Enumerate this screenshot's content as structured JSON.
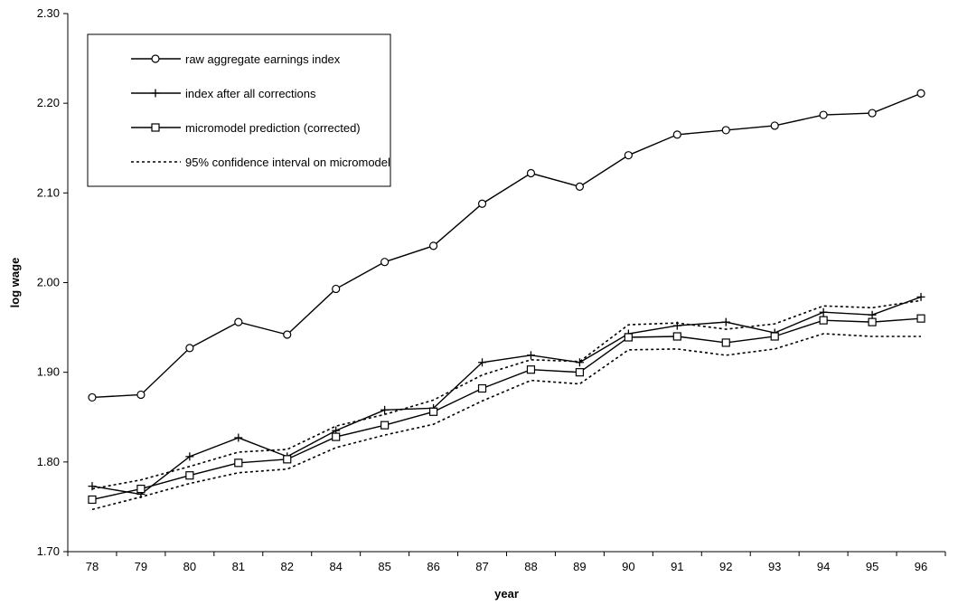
{
  "chart_data": {
    "type": "line",
    "xlabel": "year",
    "ylabel": "log wage",
    "categories": [
      "78",
      "79",
      "80",
      "81",
      "82",
      "84",
      "85",
      "86",
      "87",
      "88",
      "89",
      "90",
      "91",
      "92",
      "93",
      "94",
      "95",
      "96"
    ],
    "ylim": [
      1.7,
      2.3
    ],
    "yticks": [
      "1.70",
      "1.80",
      "1.90",
      "2.00",
      "2.10",
      "2.20",
      "2.30"
    ],
    "grid": false,
    "legend_placement": "top-left",
    "series": [
      {
        "name": "raw aggregate earnings index",
        "marker": "circle",
        "line": "solid",
        "values": [
          1.872,
          1.875,
          1.927,
          1.956,
          1.942,
          1.993,
          2.023,
          2.041,
          2.088,
          2.122,
          2.107,
          2.142,
          2.165,
          2.17,
          2.175,
          2.187,
          2.189,
          2.211
        ]
      },
      {
        "name": "index after all corrections",
        "marker": "plus",
        "line": "solid",
        "values": [
          1.773,
          1.764,
          1.806,
          1.827,
          1.806,
          1.835,
          1.858,
          1.86,
          1.911,
          1.919,
          1.911,
          1.943,
          1.952,
          1.956,
          1.944,
          1.967,
          1.964,
          1.984
        ]
      },
      {
        "name": "micromodel prediction (corrected)",
        "marker": "square",
        "line": "solid",
        "values": [
          1.758,
          1.77,
          1.785,
          1.799,
          1.803,
          1.828,
          1.841,
          1.856,
          1.882,
          1.903,
          1.9,
          1.939,
          1.94,
          1.933,
          1.94,
          1.958,
          1.956,
          1.96
        ]
      },
      {
        "name": "95% confidence interval on micromodel",
        "marker": "none",
        "line": "dotted",
        "values": [
          1.77,
          1.78,
          1.795,
          1.811,
          1.814,
          1.84,
          1.853,
          1.869,
          1.897,
          1.914,
          1.912,
          1.953,
          1.955,
          1.948,
          1.954,
          1.974,
          1.972,
          1.98
        ]
      },
      {
        "name": "",
        "marker": "none",
        "line": "dotted",
        "values": [
          1.747,
          1.761,
          1.776,
          1.788,
          1.792,
          1.816,
          1.83,
          1.842,
          1.868,
          1.891,
          1.887,
          1.925,
          1.926,
          1.919,
          1.926,
          1.943,
          1.94,
          1.94
        ]
      }
    ]
  }
}
